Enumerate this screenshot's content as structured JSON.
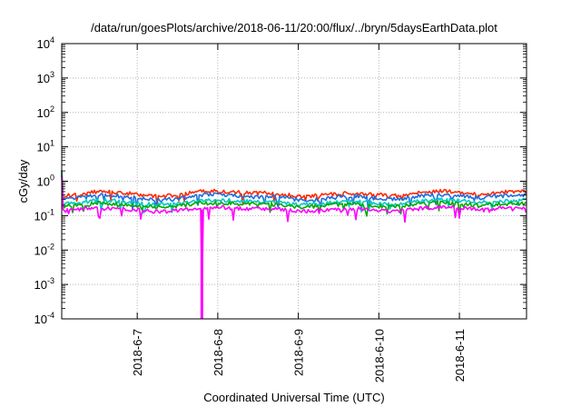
{
  "chart_data": {
    "type": "line",
    "title": "/data/run/goesPlots/archive/2018-06-11/20:00/flux/../bryn/5daysEarthData.plot",
    "xlabel": "Coordinated Universal Time (UTC)",
    "ylabel": "cGy/day",
    "yscale": "log",
    "ylim": [
      0.0001,
      10000
    ],
    "xlim": [
      "2018-06-06T01:30",
      "2018-06-11T20:00"
    ],
    "grid": true,
    "legend": "none",
    "y_ticks": [
      {
        "mant": "10",
        "exp": "-4",
        "value": 0.0001
      },
      {
        "mant": "10",
        "exp": "-3",
        "value": 0.001
      },
      {
        "mant": "10",
        "exp": "-2",
        "value": 0.01
      },
      {
        "mant": "10",
        "exp": "-1",
        "value": 0.1
      },
      {
        "mant": "10",
        "exp": "0",
        "value": 1
      },
      {
        "mant": "10",
        "exp": "1",
        "value": 10
      },
      {
        "mant": "10",
        "exp": "2",
        "value": 100
      },
      {
        "mant": "10",
        "exp": "3",
        "value": 1000
      },
      {
        "mant": "10",
        "exp": "4",
        "value": 10000
      }
    ],
    "x_ticks": [
      {
        "label": "2018-6-7",
        "value": "2018-06-07T00:00"
      },
      {
        "label": "2018-6-8",
        "value": "2018-06-08T00:00"
      },
      {
        "label": "2018-6-9",
        "value": "2018-06-09T00:00"
      },
      {
        "label": "2018-6-10",
        "value": "2018-06-10T00:00"
      },
      {
        "label": "2018-6-11",
        "value": "2018-06-11T00:00"
      }
    ],
    "series": [
      {
        "color": "#ff2a00",
        "x": [
          "2018-06-06T01:30",
          "2018-06-06T06:00",
          "2018-06-06T12:00",
          "2018-06-06T18:00",
          "2018-06-07T00:00",
          "2018-06-07T06:00",
          "2018-06-07T12:00",
          "2018-06-07T18:00",
          "2018-06-08T00:00",
          "2018-06-08T06:00",
          "2018-06-08T12:00",
          "2018-06-08T18:00",
          "2018-06-09T00:00",
          "2018-06-09T06:00",
          "2018-06-09T12:00",
          "2018-06-09T18:00",
          "2018-06-10T00:00",
          "2018-06-10T06:00",
          "2018-06-10T12:00",
          "2018-06-10T18:00",
          "2018-06-11T00:00",
          "2018-06-11T06:00",
          "2018-06-11T12:00",
          "2018-06-11T20:00"
        ],
        "y": [
          0.38,
          0.4,
          0.5,
          0.48,
          0.42,
          0.36,
          0.4,
          0.5,
          0.52,
          0.48,
          0.46,
          0.45,
          0.36,
          0.38,
          0.44,
          0.46,
          0.4,
          0.38,
          0.48,
          0.52,
          0.5,
          0.42,
          0.48,
          0.5
        ]
      },
      {
        "color": "#1e6fe0",
        "x": [
          "2018-06-06T01:30",
          "2018-06-06T06:00",
          "2018-06-06T12:00",
          "2018-06-06T18:00",
          "2018-06-07T00:00",
          "2018-06-07T06:00",
          "2018-06-07T12:00",
          "2018-06-07T18:00",
          "2018-06-08T00:00",
          "2018-06-08T06:00",
          "2018-06-08T12:00",
          "2018-06-08T18:00",
          "2018-06-09T00:00",
          "2018-06-09T06:00",
          "2018-06-09T12:00",
          "2018-06-09T18:00",
          "2018-06-10T00:00",
          "2018-06-10T06:00",
          "2018-06-10T12:00",
          "2018-06-10T18:00",
          "2018-06-11T00:00",
          "2018-06-11T06:00",
          "2018-06-11T12:00",
          "2018-06-11T20:00"
        ],
        "y": [
          0.3,
          0.32,
          0.4,
          0.38,
          0.33,
          0.28,
          0.31,
          0.4,
          0.42,
          0.38,
          0.36,
          0.36,
          0.28,
          0.3,
          0.35,
          0.37,
          0.31,
          0.3,
          0.38,
          0.42,
          0.4,
          0.33,
          0.38,
          0.4
        ]
      },
      {
        "color": "#00c8c8",
        "x": [
          "2018-06-06T01:30",
          "2018-06-06T06:00",
          "2018-06-06T12:00",
          "2018-06-06T18:00",
          "2018-06-07T00:00",
          "2018-06-07T06:00",
          "2018-06-07T12:00",
          "2018-06-07T18:00",
          "2018-06-08T00:00",
          "2018-06-08T06:00",
          "2018-06-08T12:00",
          "2018-06-08T18:00",
          "2018-06-09T00:00",
          "2018-06-09T06:00",
          "2018-06-09T12:00",
          "2018-06-09T18:00",
          "2018-06-10T00:00",
          "2018-06-10T06:00",
          "2018-06-10T12:00",
          "2018-06-10T18:00",
          "2018-06-11T00:00",
          "2018-06-11T06:00",
          "2018-06-11T12:00",
          "2018-06-11T20:00"
        ],
        "y": [
          0.22,
          0.24,
          0.28,
          0.27,
          0.24,
          0.21,
          0.23,
          0.28,
          0.29,
          0.27,
          0.26,
          0.26,
          0.21,
          0.22,
          0.25,
          0.26,
          0.23,
          0.22,
          0.27,
          0.29,
          0.28,
          0.24,
          0.27,
          0.28
        ]
      },
      {
        "color": "#00aa00",
        "x": [
          "2018-06-06T01:30",
          "2018-06-06T06:00",
          "2018-06-06T12:00",
          "2018-06-06T18:00",
          "2018-06-07T00:00",
          "2018-06-07T06:00",
          "2018-06-07T12:00",
          "2018-06-07T18:00",
          "2018-06-08T00:00",
          "2018-06-08T06:00",
          "2018-06-08T12:00",
          "2018-06-08T18:00",
          "2018-06-09T00:00",
          "2018-06-09T06:00",
          "2018-06-09T12:00",
          "2018-06-09T18:00",
          "2018-06-10T00:00",
          "2018-06-10T06:00",
          "2018-06-10T12:00",
          "2018-06-10T18:00",
          "2018-06-11T00:00",
          "2018-06-11T06:00",
          "2018-06-11T12:00",
          "2018-06-11T20:00"
        ],
        "y": [
          0.19,
          0.2,
          0.23,
          0.22,
          0.2,
          0.18,
          0.19,
          0.23,
          0.24,
          0.22,
          0.22,
          0.21,
          0.18,
          0.19,
          0.21,
          0.22,
          0.19,
          0.19,
          0.22,
          0.24,
          0.23,
          0.2,
          0.22,
          0.23
        ]
      },
      {
        "color": "#ff00ff",
        "x": [
          "2018-06-06T01:30",
          "2018-06-06T06:00",
          "2018-06-06T12:00",
          "2018-06-06T18:00",
          "2018-06-07T00:00",
          "2018-06-07T06:00",
          "2018-06-07T12:00",
          "2018-06-07T18:00",
          "2018-06-07T19:10",
          "2018-06-07T19:15",
          "2018-06-07T19:25",
          "2018-06-08T00:00",
          "2018-06-08T06:00",
          "2018-06-08T12:00",
          "2018-06-08T18:00",
          "2018-06-09T00:00",
          "2018-06-09T06:00",
          "2018-06-09T12:00",
          "2018-06-09T18:00",
          "2018-06-10T00:00",
          "2018-06-10T06:00",
          "2018-06-10T12:00",
          "2018-06-10T18:00",
          "2018-06-11T00:00",
          "2018-06-11T06:00",
          "2018-06-11T12:00",
          "2018-06-11T20:00"
        ],
        "y": [
          0.14,
          0.15,
          0.17,
          0.16,
          0.15,
          0.13,
          0.14,
          0.17,
          0.16,
          0.0001,
          0.16,
          0.18,
          0.16,
          0.16,
          0.16,
          0.13,
          0.14,
          0.15,
          0.16,
          0.14,
          0.14,
          0.16,
          0.18,
          0.17,
          0.15,
          0.16,
          0.17
        ]
      }
    ]
  }
}
